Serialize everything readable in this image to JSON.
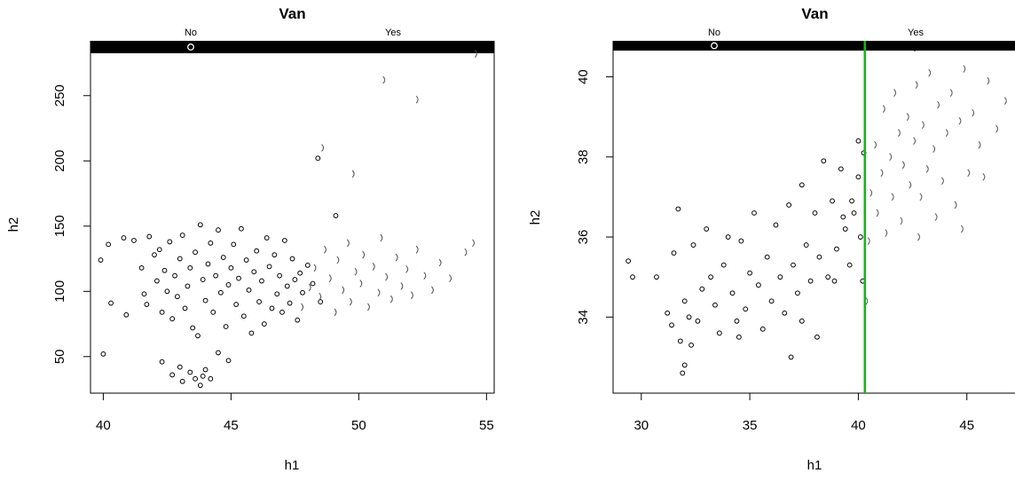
{
  "chart_data": [
    {
      "type": "scatter",
      "title": "Van",
      "xlabel": "h1",
      "ylabel": "h2",
      "xlim": [
        39.5,
        55.3
      ],
      "ylim": [
        22,
        292
      ],
      "xticks": [
        40,
        45,
        50,
        55
      ],
      "yticks": [
        50,
        100,
        150,
        200,
        250
      ],
      "xtick_labels": [
        "40",
        "45",
        "50",
        "55"
      ],
      "ytick_labels": [
        "50",
        "100",
        "150",
        "200",
        "250"
      ],
      "legend_labels": [
        "No",
        "Yes"
      ],
      "legend_placement": "top",
      "grid": false,
      "colors": {
        "axis": "#000000",
        "points": "#000000",
        "yes_marker": "#555555"
      },
      "series": [
        {
          "name": "No",
          "marker": "circle",
          "points": [
            [
              39.9,
              124
            ],
            [
              40.2,
              136
            ],
            [
              40.3,
              91
            ],
            [
              40.8,
              141
            ],
            [
              40.9,
              82
            ],
            [
              41.2,
              139
            ],
            [
              41.5,
              118
            ],
            [
              41.6,
              98
            ],
            [
              41.7,
              90
            ],
            [
              41.8,
              142
            ],
            [
              42.0,
              128
            ],
            [
              42.1,
              108
            ],
            [
              42.2,
              132
            ],
            [
              42.3,
              84
            ],
            [
              42.4,
              116
            ],
            [
              42.5,
              100
            ],
            [
              42.6,
              138
            ],
            [
              42.7,
              79
            ],
            [
              42.8,
              112
            ],
            [
              42.9,
              96
            ],
            [
              43.0,
              125
            ],
            [
              43.1,
              143
            ],
            [
              43.2,
              87
            ],
            [
              43.3,
              104
            ],
            [
              43.4,
              118
            ],
            [
              43.5,
              72
            ],
            [
              43.6,
              130
            ],
            [
              43.7,
              66
            ],
            [
              43.8,
              151
            ],
            [
              43.9,
              109
            ],
            [
              44.0,
              93
            ],
            [
              44.1,
              121
            ],
            [
              44.2,
              137
            ],
            [
              44.3,
              84
            ],
            [
              44.4,
              112
            ],
            [
              44.5,
              147
            ],
            [
              44.6,
              99
            ],
            [
              44.7,
              126
            ],
            [
              44.8,
              73
            ],
            [
              44.9,
              105
            ],
            [
              45.0,
              118
            ],
            [
              45.1,
              136
            ],
            [
              45.2,
              90
            ],
            [
              45.3,
              110
            ],
            [
              45.4,
              148
            ],
            [
              45.5,
              81
            ],
            [
              45.6,
              124
            ],
            [
              45.7,
              101
            ],
            [
              45.8,
              68
            ],
            [
              45.9,
              115
            ],
            [
              46.0,
              131
            ],
            [
              46.1,
              92
            ],
            [
              46.2,
              108
            ],
            [
              46.3,
              75
            ],
            [
              46.4,
              141
            ],
            [
              46.5,
              119
            ],
            [
              46.6,
              87
            ],
            [
              46.7,
              128
            ],
            [
              46.8,
              98
            ],
            [
              46.9,
              112
            ],
            [
              47.0,
              84
            ],
            [
              47.1,
              139
            ],
            [
              47.2,
              104
            ],
            [
              47.3,
              91
            ],
            [
              47.4,
              125
            ],
            [
              47.5,
              109
            ],
            [
              47.6,
              78
            ],
            [
              47.7,
              114
            ],
            [
              47.8,
              99
            ],
            [
              48.0,
              120
            ],
            [
              48.2,
              106
            ],
            [
              48.4,
              202
            ],
            [
              48.5,
              92
            ],
            [
              49.1,
              158
            ],
            [
              42.3,
              46
            ],
            [
              42.7,
              36
            ],
            [
              43.0,
              42
            ],
            [
              43.1,
              31
            ],
            [
              43.4,
              38
            ],
            [
              43.6,
              33
            ],
            [
              43.8,
              28
            ],
            [
              43.9,
              35
            ],
            [
              44.0,
              40
            ],
            [
              44.2,
              33
            ],
            [
              44.5,
              53
            ],
            [
              44.9,
              47
            ],
            [
              40.0,
              52
            ]
          ]
        },
        {
          "name": "Yes",
          "marker": ")",
          "points": [
            [
              47.8,
              88
            ],
            [
              48.1,
              103
            ],
            [
              48.3,
              118
            ],
            [
              48.5,
              96
            ],
            [
              48.7,
              132
            ],
            [
              48.9,
              110
            ],
            [
              49.1,
              84
            ],
            [
              49.2,
              124
            ],
            [
              49.4,
              101
            ],
            [
              49.6,
              137
            ],
            [
              49.7,
              92
            ],
            [
              49.9,
              115
            ],
            [
              50.1,
              106
            ],
            [
              50.2,
              128
            ],
            [
              50.4,
              88
            ],
            [
              50.6,
              119
            ],
            [
              50.8,
              99
            ],
            [
              50.9,
              141
            ],
            [
              51.1,
              111
            ],
            [
              51.3,
              94
            ],
            [
              51.5,
              126
            ],
            [
              51.7,
              104
            ],
            [
              51.9,
              117
            ],
            [
              52.1,
              97
            ],
            [
              52.3,
              132
            ],
            [
              52.6,
              112
            ],
            [
              52.9,
              101
            ],
            [
              53.2,
              122
            ],
            [
              53.6,
              110
            ],
            [
              54.2,
              130
            ],
            [
              48.6,
              210
            ],
            [
              49.8,
              190
            ],
            [
              51.0,
              262
            ],
            [
              52.3,
              247
            ],
            [
              54.6,
              282
            ],
            [
              54.5,
              137
            ]
          ]
        }
      ]
    },
    {
      "type": "scatter",
      "title": "Van",
      "xlabel": "h1",
      "ylabel": "h2",
      "xlim": [
        28.7,
        47.3
      ],
      "ylim": [
        32.1,
        40.9
      ],
      "xticks": [
        30,
        35,
        40,
        45
      ],
      "yticks": [
        34,
        36,
        38,
        40
      ],
      "xtick_labels": [
        "30",
        "35",
        "40",
        "45"
      ],
      "ytick_labels": [
        "34",
        "36",
        "38",
        "40"
      ],
      "legend_labels": [
        "No",
        "Yes"
      ],
      "legend_placement": "top",
      "grid": false,
      "vertical_line": {
        "x": 40.3,
        "color": "#18b418"
      },
      "colors": {
        "axis": "#000000",
        "points": "#000000",
        "yes_marker": "#555555"
      },
      "series": [
        {
          "name": "No",
          "marker": "circle",
          "points": [
            [
              29.4,
              35.4
            ],
            [
              29.6,
              35.0
            ],
            [
              30.7,
              35.0
            ],
            [
              31.2,
              34.1
            ],
            [
              31.4,
              33.8
            ],
            [
              31.5,
              35.6
            ],
            [
              31.7,
              36.7
            ],
            [
              31.8,
              33.4
            ],
            [
              32.0,
              34.4
            ],
            [
              32.2,
              34.0
            ],
            [
              32.4,
              35.8
            ],
            [
              32.6,
              33.9
            ],
            [
              32.8,
              34.7
            ],
            [
              33.0,
              36.2
            ],
            [
              33.2,
              35.0
            ],
            [
              33.4,
              34.3
            ],
            [
              33.6,
              33.6
            ],
            [
              33.8,
              35.3
            ],
            [
              34.0,
              36.0
            ],
            [
              34.2,
              34.6
            ],
            [
              34.4,
              33.9
            ],
            [
              34.6,
              35.9
            ],
            [
              34.8,
              34.2
            ],
            [
              35.0,
              35.1
            ],
            [
              35.2,
              36.6
            ],
            [
              35.4,
              34.8
            ],
            [
              35.6,
              33.7
            ],
            [
              35.8,
              35.5
            ],
            [
              36.0,
              34.4
            ],
            [
              36.2,
              36.3
            ],
            [
              36.4,
              35.0
            ],
            [
              36.6,
              34.1
            ],
            [
              36.8,
              36.8
            ],
            [
              37.0,
              35.3
            ],
            [
              37.2,
              34.6
            ],
            [
              37.4,
              37.3
            ],
            [
              37.6,
              35.8
            ],
            [
              37.8,
              34.9
            ],
            [
              38.0,
              36.6
            ],
            [
              38.2,
              35.5
            ],
            [
              38.4,
              37.9
            ],
            [
              38.6,
              35.0
            ],
            [
              38.8,
              36.9
            ],
            [
              39.0,
              35.7
            ],
            [
              39.2,
              37.7
            ],
            [
              39.4,
              36.2
            ],
            [
              39.6,
              35.3
            ],
            [
              39.8,
              36.6
            ],
            [
              40.0,
              38.4
            ],
            [
              40.1,
              36.0
            ],
            [
              40.2,
              34.9
            ],
            [
              40.25,
              38.1
            ],
            [
              40.0,
              37.5
            ],
            [
              39.7,
              36.9
            ],
            [
              39.3,
              36.5
            ],
            [
              38.9,
              34.9
            ],
            [
              38.1,
              33.5
            ],
            [
              37.4,
              33.9
            ],
            [
              36.9,
              33.0
            ],
            [
              34.5,
              33.5
            ],
            [
              32.3,
              33.3
            ],
            [
              32.0,
              32.8
            ],
            [
              31.9,
              32.6
            ]
          ]
        },
        {
          "name": "Yes",
          "marker": ")",
          "points": [
            [
              40.4,
              34.4
            ],
            [
              40.5,
              35.9
            ],
            [
              40.6,
              37.1
            ],
            [
              40.8,
              38.3
            ],
            [
              40.9,
              36.6
            ],
            [
              41.1,
              37.6
            ],
            [
              41.2,
              39.2
            ],
            [
              41.3,
              36.1
            ],
            [
              41.5,
              38.0
            ],
            [
              41.6,
              37.0
            ],
            [
              41.7,
              39.6
            ],
            [
              41.9,
              38.6
            ],
            [
              42.0,
              36.4
            ],
            [
              42.1,
              37.8
            ],
            [
              42.3,
              39.0
            ],
            [
              42.4,
              37.3
            ],
            [
              42.6,
              38.4
            ],
            [
              42.7,
              39.8
            ],
            [
              42.9,
              37.0
            ],
            [
              43.0,
              38.8
            ],
            [
              43.2,
              37.7
            ],
            [
              43.3,
              40.1
            ],
            [
              43.5,
              38.2
            ],
            [
              43.7,
              39.3
            ],
            [
              43.9,
              37.4
            ],
            [
              44.1,
              38.6
            ],
            [
              44.3,
              39.6
            ],
            [
              44.5,
              36.8
            ],
            [
              44.7,
              38.9
            ],
            [
              44.9,
              40.2
            ],
            [
              45.1,
              37.6
            ],
            [
              45.3,
              39.1
            ],
            [
              45.6,
              38.3
            ],
            [
              46.0,
              39.9
            ],
            [
              46.4,
              38.7
            ],
            [
              46.8,
              39.4
            ],
            [
              45.8,
              37.5
            ],
            [
              44.8,
              36.2
            ],
            [
              43.6,
              36.5
            ],
            [
              42.8,
              36.0
            ]
          ]
        }
      ]
    }
  ]
}
